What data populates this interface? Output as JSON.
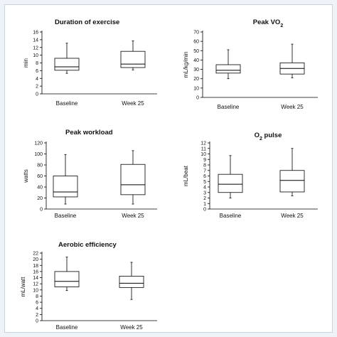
{
  "chart_data": [
    {
      "type": "boxplot",
      "title": "Duration of exercise",
      "ylabel": "min",
      "ylim": [
        0,
        16
      ],
      "yticks": [
        0,
        2,
        4,
        6,
        8,
        10,
        12,
        14,
        16
      ],
      "categories": [
        "Baseline",
        "Week 25"
      ],
      "boxes": [
        {
          "min": 5.3,
          "q1": 6.1,
          "median": 7.0,
          "q3": 9.2,
          "max": 13.1
        },
        {
          "min": 6.2,
          "q1": 6.8,
          "median": 7.7,
          "q3": 11.0,
          "max": 13.7
        }
      ]
    },
    {
      "type": "boxplot",
      "title": "Peak VO",
      "title_sub": "2",
      "ylabel": "mL/kg/min",
      "ylim": [
        0,
        70
      ],
      "yticks": [
        0,
        10,
        20,
        30,
        40,
        50,
        60,
        70
      ],
      "categories": [
        "Baseline",
        "Week 25"
      ],
      "boxes": [
        {
          "min": 20,
          "q1": 26,
          "median": 29,
          "q3": 35,
          "max": 51
        },
        {
          "min": 21,
          "q1": 25,
          "median": 31,
          "q3": 37,
          "max": 57
        }
      ]
    },
    {
      "type": "boxplot",
      "title": "Peak workload",
      "ylabel": "watts",
      "ylim": [
        0,
        120
      ],
      "yticks": [
        0,
        20,
        40,
        60,
        80,
        100,
        120
      ],
      "categories": [
        "Baseline",
        "Week 25"
      ],
      "boxes": [
        {
          "min": 9,
          "q1": 22,
          "median": 31,
          "q3": 60,
          "max": 99
        },
        {
          "min": 9,
          "q1": 26,
          "median": 44,
          "q3": 81,
          "max": 106
        }
      ]
    },
    {
      "type": "boxplot",
      "title": "O",
      "title_sub": "2",
      "title_rest": " pulse",
      "ylabel": "mL/beat",
      "ylim": [
        0,
        12
      ],
      "yticks": [
        0,
        1,
        2,
        3,
        4,
        5,
        6,
        7,
        8,
        9,
        10,
        11,
        12
      ],
      "categories": [
        "Baseline",
        "Week 25"
      ],
      "boxes": [
        {
          "min": 2.0,
          "q1": 3.0,
          "median": 4.5,
          "q3": 6.3,
          "max": 9.7
        },
        {
          "min": 2.4,
          "q1": 3.1,
          "median": 5.2,
          "q3": 7.0,
          "max": 11.0
        }
      ]
    },
    {
      "type": "boxplot",
      "title": "Aerobic efficiency",
      "ylabel": "mL/watt",
      "ylim": [
        0,
        22
      ],
      "yticks": [
        0,
        2,
        4,
        6,
        8,
        10,
        12,
        14,
        16,
        18,
        20,
        22
      ],
      "categories": [
        "Baseline",
        "Week 25"
      ],
      "boxes": [
        {
          "min": 9.8,
          "q1": 11.0,
          "median": 12.8,
          "q3": 16.0,
          "max": 20.7
        },
        {
          "min": 6.9,
          "q1": 10.8,
          "median": 12.2,
          "q3": 14.5,
          "max": 19.0
        }
      ]
    }
  ]
}
